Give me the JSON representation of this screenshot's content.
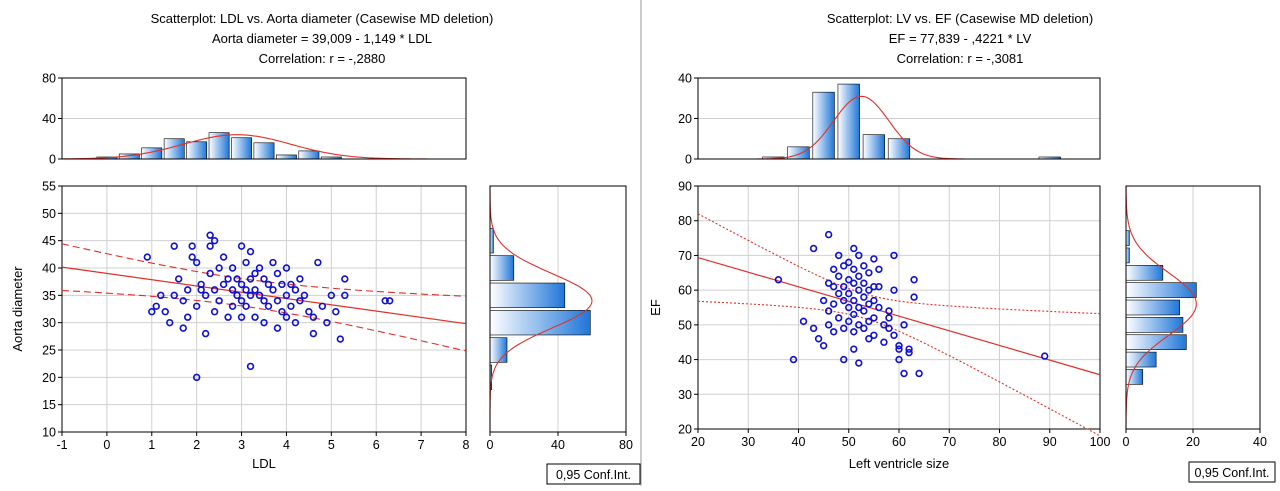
{
  "panels": [
    {
      "header": [
        "Scatterplot: LDL        vs. Aorta diameter (Casewise MD deletion)",
        "Aorta diameter = 39,009 - 1,149  * LDL",
        "Correlation: r = -,2880"
      ],
      "legend": "0,95 Conf.Int.",
      "chart_data": {
        "type": "scatter",
        "xlabel": "LDL",
        "ylabel": "Aorta diameter",
        "xlim": [
          -1,
          8
        ],
        "ylim": [
          10,
          55
        ],
        "xticks": [
          -1,
          0,
          1,
          2,
          3,
          4,
          5,
          6,
          7,
          8
        ],
        "yticks": [
          10,
          15,
          20,
          25,
          30,
          35,
          40,
          45,
          50,
          55
        ],
        "regression": {
          "intercept": 39.009,
          "slope": -1.149,
          "r": -0.288
        },
        "confidence_band": {
          "style": "dashed",
          "width": 2.5,
          "curvature": 0.12,
          "center": 3.0
        },
        "points": [
          [
            0.9,
            42
          ],
          [
            1.0,
            32
          ],
          [
            1.1,
            33
          ],
          [
            1.2,
            35
          ],
          [
            1.3,
            32
          ],
          [
            1.4,
            30
          ],
          [
            1.5,
            44
          ],
          [
            1.5,
            35
          ],
          [
            1.6,
            38
          ],
          [
            1.7,
            34
          ],
          [
            1.7,
            29
          ],
          [
            1.8,
            36
          ],
          [
            1.8,
            31
          ],
          [
            1.9,
            42
          ],
          [
            1.9,
            44
          ],
          [
            2.0,
            41
          ],
          [
            2.0,
            33
          ],
          [
            2.0,
            20
          ],
          [
            2.1,
            37
          ],
          [
            2.1,
            36
          ],
          [
            2.2,
            35
          ],
          [
            2.2,
            28
          ],
          [
            2.3,
            46
          ],
          [
            2.3,
            44
          ],
          [
            2.3,
            39
          ],
          [
            2.4,
            45
          ],
          [
            2.4,
            36
          ],
          [
            2.4,
            32
          ],
          [
            2.5,
            40
          ],
          [
            2.5,
            34
          ],
          [
            2.6,
            42
          ],
          [
            2.6,
            37
          ],
          [
            2.7,
            38
          ],
          [
            2.7,
            31
          ],
          [
            2.8,
            40
          ],
          [
            2.8,
            36
          ],
          [
            2.8,
            33
          ],
          [
            2.9,
            38
          ],
          [
            2.9,
            35
          ],
          [
            3.0,
            44
          ],
          [
            3.0,
            37
          ],
          [
            3.0,
            34
          ],
          [
            3.0,
            31
          ],
          [
            3.1,
            41
          ],
          [
            3.1,
            36
          ],
          [
            3.1,
            33
          ],
          [
            3.2,
            43
          ],
          [
            3.2,
            38
          ],
          [
            3.2,
            35
          ],
          [
            3.2,
            22
          ],
          [
            3.3,
            39
          ],
          [
            3.3,
            36
          ],
          [
            3.3,
            31
          ],
          [
            3.4,
            40
          ],
          [
            3.4,
            35
          ],
          [
            3.5,
            38
          ],
          [
            3.5,
            34
          ],
          [
            3.5,
            30
          ],
          [
            3.6,
            37
          ],
          [
            3.6,
            33
          ],
          [
            3.7,
            41
          ],
          [
            3.7,
            36
          ],
          [
            3.8,
            39
          ],
          [
            3.8,
            34
          ],
          [
            3.8,
            29
          ],
          [
            3.9,
            37
          ],
          [
            3.9,
            32
          ],
          [
            4.0,
            40
          ],
          [
            4.0,
            35
          ],
          [
            4.0,
            31
          ],
          [
            4.1,
            37
          ],
          [
            4.1,
            33
          ],
          [
            4.2,
            36
          ],
          [
            4.2,
            30
          ],
          [
            4.3,
            38
          ],
          [
            4.3,
            34
          ],
          [
            4.4,
            35
          ],
          [
            4.5,
            32
          ],
          [
            4.6,
            31
          ],
          [
            4.6,
            28
          ],
          [
            4.7,
            41
          ],
          [
            4.8,
            33
          ],
          [
            4.9,
            30
          ],
          [
            5.0,
            35
          ],
          [
            5.1,
            32
          ],
          [
            5.2,
            27
          ],
          [
            5.3,
            35
          ],
          [
            5.3,
            38
          ],
          [
            6.2,
            34
          ],
          [
            6.3,
            34
          ]
        ],
        "top_histogram": {
          "ylim": [
            0,
            80
          ],
          "yticks": [
            0,
            40,
            80
          ],
          "bins": [
            [
              0,
              2
            ],
            [
              0.5,
              5
            ],
            [
              1,
              11
            ],
            [
              1.5,
              20
            ],
            [
              2,
              17
            ],
            [
              2.5,
              26
            ],
            [
              3,
              21
            ],
            [
              3.5,
              16
            ],
            [
              4,
              4
            ],
            [
              4.5,
              8
            ],
            [
              5,
              2
            ]
          ],
          "bin_width": 0.45,
          "normal": {
            "mean": 2.9,
            "sd": 1.2,
            "peak": 24
          }
        },
        "right_histogram": {
          "xlim": [
            0,
            80
          ],
          "xticks": [
            0,
            40,
            80
          ],
          "bins": [
            [
              20,
              1
            ],
            [
              25,
              10
            ],
            [
              30,
              59
            ],
            [
              35,
              44
            ],
            [
              40,
              14
            ],
            [
              45,
              2
            ]
          ],
          "bin_width": 4.5,
          "normal": {
            "mean": 34,
            "sd": 5,
            "peak": 60
          }
        }
      }
    },
    {
      "header": [
        "Scatterplot: LV        vs. EF      (Casewise MD deletion)",
        "EF        = 77,839 - ,4221  * LV",
        "Correlation: r = -,3081"
      ],
      "legend": "0,95 Conf.Int.",
      "chart_data": {
        "type": "scatter",
        "xlabel": "Left ventricle size",
        "ylabel": "EF",
        "xlim": [
          20,
          100
        ],
        "ylim": [
          20,
          90
        ],
        "xticks": [
          20,
          30,
          40,
          50,
          60,
          70,
          80,
          90,
          100
        ],
        "yticks": [
          20,
          30,
          40,
          50,
          60,
          70,
          80,
          90
        ],
        "regression": {
          "intercept": 77.839,
          "slope": -0.4221,
          "r": -0.3081
        },
        "confidence_band": {
          "style": "dotted",
          "width": 3.5,
          "curvature": 0.011,
          "center": 53
        },
        "points": [
          [
            36,
            63
          ],
          [
            39,
            40
          ],
          [
            41,
            51
          ],
          [
            43,
            72
          ],
          [
            43,
            49
          ],
          [
            44,
            46
          ],
          [
            45,
            44
          ],
          [
            45,
            57
          ],
          [
            46,
            76
          ],
          [
            46,
            62
          ],
          [
            46,
            54
          ],
          [
            46,
            50
          ],
          [
            47,
            66
          ],
          [
            47,
            61
          ],
          [
            47,
            56
          ],
          [
            47,
            48
          ],
          [
            48,
            70
          ],
          [
            48,
            64
          ],
          [
            48,
            59
          ],
          [
            48,
            52
          ],
          [
            49,
            67
          ],
          [
            49,
            61
          ],
          [
            49,
            57
          ],
          [
            49,
            49
          ],
          [
            49,
            40
          ],
          [
            50,
            68
          ],
          [
            50,
            63
          ],
          [
            50,
            59
          ],
          [
            50,
            55
          ],
          [
            50,
            51
          ],
          [
            51,
            72
          ],
          [
            51,
            66
          ],
          [
            51,
            62
          ],
          [
            51,
            57
          ],
          [
            51,
            53
          ],
          [
            51,
            48
          ],
          [
            51,
            43
          ],
          [
            52,
            70
          ],
          [
            52,
            64
          ],
          [
            52,
            60
          ],
          [
            52,
            55
          ],
          [
            52,
            50
          ],
          [
            52,
            39
          ],
          [
            53,
            67
          ],
          [
            53,
            62
          ],
          [
            53,
            58
          ],
          [
            53,
            54
          ],
          [
            53,
            49
          ],
          [
            54,
            65
          ],
          [
            54,
            60
          ],
          [
            54,
            56
          ],
          [
            54,
            51
          ],
          [
            54,
            46
          ],
          [
            55,
            69
          ],
          [
            55,
            61
          ],
          [
            55,
            57
          ],
          [
            55,
            52
          ],
          [
            55,
            47
          ],
          [
            56,
            66
          ],
          [
            56,
            61
          ],
          [
            56,
            55
          ],
          [
            57,
            50
          ],
          [
            57,
            45
          ],
          [
            58,
            54
          ],
          [
            58,
            49
          ],
          [
            58,
            52
          ],
          [
            59,
            70
          ],
          [
            59,
            60
          ],
          [
            59,
            47
          ],
          [
            60,
            44
          ],
          [
            60,
            43
          ],
          [
            60,
            40
          ],
          [
            61,
            50
          ],
          [
            61,
            36
          ],
          [
            62,
            43
          ],
          [
            62,
            42
          ],
          [
            63,
            63
          ],
          [
            63,
            58
          ],
          [
            64,
            36
          ],
          [
            89,
            41
          ]
        ],
        "top_histogram": {
          "ylim": [
            0,
            40
          ],
          "yticks": [
            0,
            20,
            40
          ],
          "bins": [
            [
              35,
              1
            ],
            [
              40,
              6
            ],
            [
              45,
              33
            ],
            [
              50,
              37
            ],
            [
              55,
              12
            ],
            [
              60,
              10
            ],
            [
              90,
              1
            ]
          ],
          "bin_width": 4.3,
          "normal": {
            "mean": 52.5,
            "sd": 5.5,
            "peak": 31
          }
        },
        "right_histogram": {
          "xlim": [
            0,
            40
          ],
          "xticks": [
            0,
            20,
            40
          ],
          "bins": [
            [
              35,
              5
            ],
            [
              40,
              9
            ],
            [
              45,
              18
            ],
            [
              50,
              17
            ],
            [
              55,
              16
            ],
            [
              60,
              21
            ],
            [
              65,
              11
            ],
            [
              70,
              1
            ],
            [
              75,
              1
            ]
          ],
          "bin_width": 4.3,
          "normal": {
            "mean": 56,
            "sd": 9,
            "peak": 21
          }
        }
      }
    }
  ]
}
